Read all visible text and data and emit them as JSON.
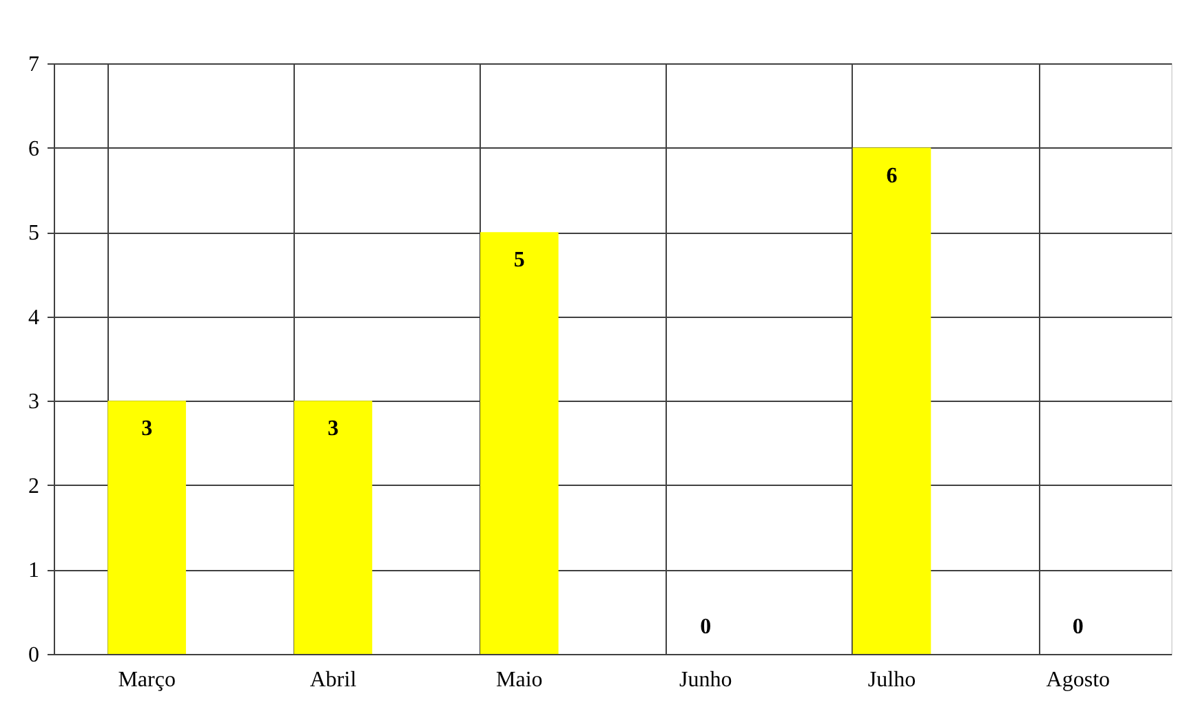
{
  "chart_data": {
    "type": "bar",
    "categories": [
      "Março",
      "Abril",
      "Maio",
      "Junho",
      "Julho",
      "Agosto"
    ],
    "values": [
      3,
      3,
      5,
      0,
      6,
      0
    ],
    "color": "#ffff00",
    "ylim": [
      0,
      7
    ],
    "yticks": [
      0,
      1,
      2,
      3,
      4,
      5,
      6,
      7
    ],
    "grid": true,
    "data_labels": true
  }
}
